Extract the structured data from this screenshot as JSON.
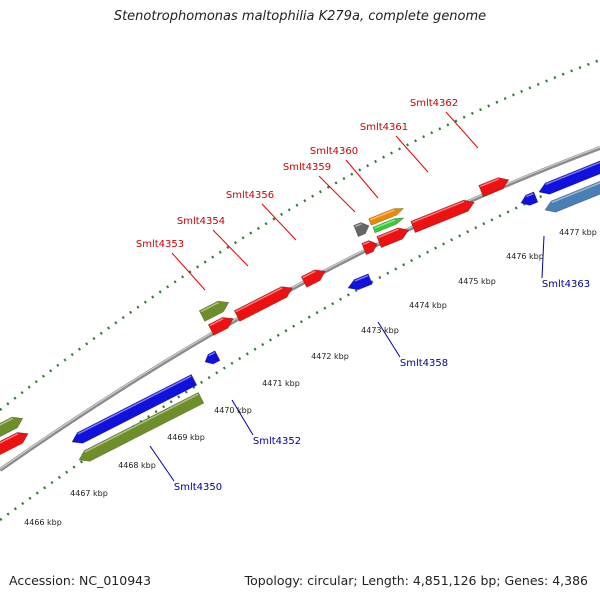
{
  "title": "Stenotrophomonas maltophilia K279a, complete genome",
  "footer": {
    "accession": "Accession: NC_010943",
    "summary": "Topology: circular; Length: 4,851,126 bp; Genes: 4,386"
  },
  "colors": {
    "red": "#ee1111",
    "blue": "#1111dd",
    "olive": "#6e8e2a",
    "steel": "#4a7fb5",
    "orange": "#ee8800",
    "green": "#33cc33",
    "gray": "#666666",
    "tick_green": "#2e7d32",
    "backbone": "#888888"
  },
  "ruler": {
    "labels": [
      "4466 kbp",
      "4467 kbp",
      "4468 kbp",
      "4469 kbp",
      "4470 kbp",
      "4471 kbp",
      "4472 kbp",
      "4473 kbp",
      "4474 kbp",
      "4475 kbp",
      "4476 kbp",
      "4477 kbp"
    ]
  },
  "gene_labels_top": [
    "Smlt4353",
    "Smlt4354",
    "Smlt4356",
    "Smlt4359",
    "Smlt4360",
    "Smlt4361",
    "Smlt4362"
  ],
  "gene_labels_bottom": [
    "Smlt4350",
    "Smlt4352",
    "Smlt4358",
    "Smlt4363"
  ]
}
